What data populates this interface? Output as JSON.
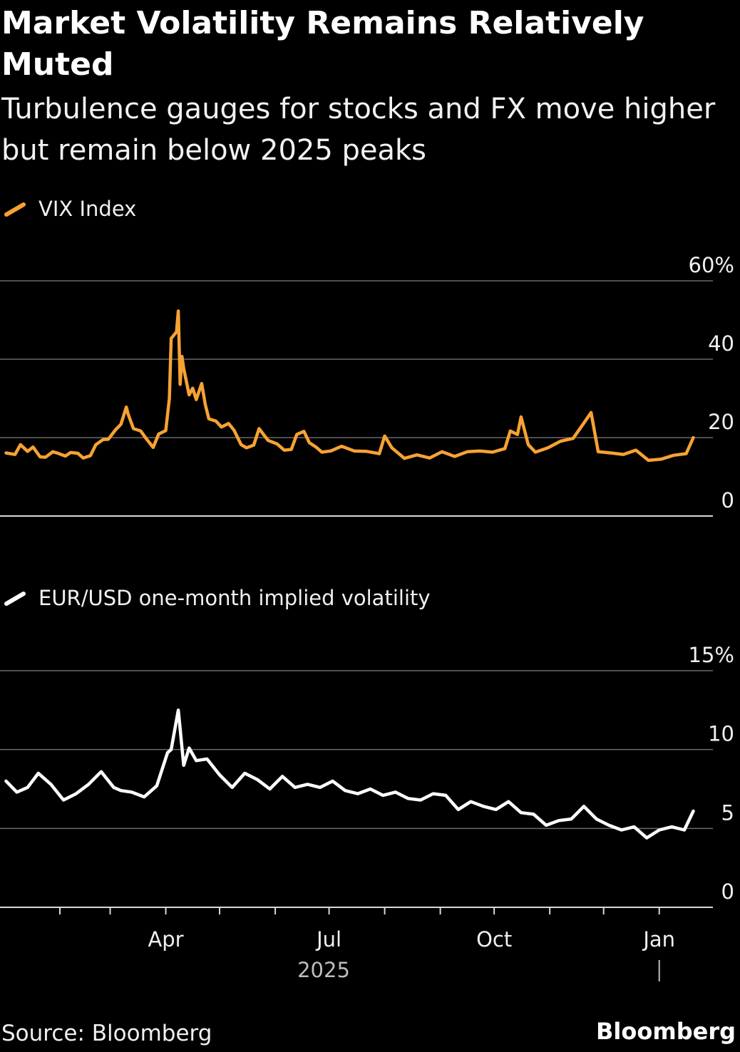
{
  "title": "Market Volatility Remains Relatively Muted",
  "subtitle": "Turbulence gauges for stocks and FX move higher but remain below 2025 peaks",
  "source": "Source: Bloomberg",
  "brand": "Bloomberg",
  "chart_data": [
    {
      "type": "line",
      "legend_placement": "top-left",
      "grid": true,
      "yticks": [
        "0",
        "20",
        "40",
        "60%"
      ],
      "ylim": [
        0,
        60
      ],
      "x_axis_shared": true,
      "color": "#f7a233",
      "series": [
        {
          "name": "VIX Index",
          "x": [
            "2025-01-02",
            "2025-01-07",
            "2025-01-10",
            "2025-01-14",
            "2025-01-17",
            "2025-01-21",
            "2025-01-24",
            "2025-01-28",
            "2025-01-31",
            "2025-02-04",
            "2025-02-07",
            "2025-02-11",
            "2025-02-14",
            "2025-02-18",
            "2025-02-21",
            "2025-02-25",
            "2025-02-28",
            "2025-03-04",
            "2025-03-07",
            "2025-03-10",
            "2025-03-11",
            "2025-03-14",
            "2025-03-18",
            "2025-03-21",
            "2025-03-25",
            "2025-03-28",
            "2025-04-01",
            "2025-04-03",
            "2025-04-04",
            "2025-04-07",
            "2025-04-08",
            "2025-04-09",
            "2025-04-10",
            "2025-04-11",
            "2025-04-14",
            "2025-04-16",
            "2025-04-18",
            "2025-04-21",
            "2025-04-23",
            "2025-04-25",
            "2025-04-29",
            "2025-05-02",
            "2025-05-06",
            "2025-05-09",
            "2025-05-13",
            "2025-05-16",
            "2025-05-20",
            "2025-05-23",
            "2025-05-28",
            "2025-06-02",
            "2025-06-06",
            "2025-06-10",
            "2025-06-13",
            "2025-06-17",
            "2025-06-20",
            "2025-06-24",
            "2025-06-27",
            "2025-07-02",
            "2025-07-08",
            "2025-07-15",
            "2025-07-22",
            "2025-07-29",
            "2025-08-01",
            "2025-08-05",
            "2025-08-12",
            "2025-08-19",
            "2025-08-26",
            "2025-09-02",
            "2025-09-09",
            "2025-09-16",
            "2025-09-23",
            "2025-09-30",
            "2025-10-07",
            "2025-10-10",
            "2025-10-14",
            "2025-10-16",
            "2025-10-20",
            "2025-10-24",
            "2025-10-31",
            "2025-11-07",
            "2025-11-14",
            "2025-11-20",
            "2025-11-24",
            "2025-11-28",
            "2025-12-05",
            "2025-12-12",
            "2025-12-19",
            "2025-12-26",
            "2026-01-02",
            "2026-01-09",
            "2026-01-16",
            "2026-01-20"
          ],
          "values": [
            16.1,
            15.7,
            18.2,
            16.5,
            17.6,
            15.1,
            15.0,
            16.4,
            16.0,
            15.3,
            16.2,
            16.0,
            14.8,
            15.4,
            18.2,
            19.5,
            19.6,
            22.0,
            23.4,
            27.8,
            26.0,
            22.3,
            21.7,
            19.8,
            17.5,
            20.9,
            21.8,
            30.0,
            45.3,
            47.0,
            52.3,
            33.6,
            40.7,
            37.6,
            30.9,
            32.6,
            29.7,
            33.8,
            28.5,
            24.8,
            24.2,
            22.7,
            23.6,
            21.9,
            18.2,
            17.4,
            18.1,
            22.3,
            19.3,
            18.4,
            16.8,
            17.0,
            20.8,
            21.6,
            18.7,
            17.5,
            16.3,
            16.6,
            17.8,
            16.6,
            16.5,
            15.9,
            20.4,
            17.4,
            14.7,
            15.6,
            14.8,
            16.4,
            15.2,
            16.4,
            16.6,
            16.3,
            17.2,
            21.7,
            20.8,
            25.3,
            18.2,
            16.3,
            17.4,
            19.1,
            19.8,
            23.7,
            26.4,
            16.4,
            16.1,
            15.7,
            16.8,
            14.2,
            14.5,
            15.5,
            15.9,
            20.0
          ]
        }
      ]
    },
    {
      "type": "line",
      "legend_placement": "top-left",
      "grid": true,
      "yticks": [
        "0",
        "5",
        "10",
        "15%"
      ],
      "ylim": [
        0,
        15
      ],
      "xticks": [
        "Apr",
        "Jul",
        "Oct",
        "Jan"
      ],
      "year_label": "2025",
      "color": "#ffffff",
      "series": [
        {
          "name": "EUR/USD one-month implied volatility",
          "x": [
            "2025-01-02",
            "2025-01-08",
            "2025-01-14",
            "2025-01-20",
            "2025-01-27",
            "2025-02-03",
            "2025-02-10",
            "2025-02-17",
            "2025-02-24",
            "2025-03-03",
            "2025-03-07",
            "2025-03-13",
            "2025-03-20",
            "2025-03-27",
            "2025-04-02",
            "2025-04-04",
            "2025-04-08",
            "2025-04-11",
            "2025-04-14",
            "2025-04-18",
            "2025-04-24",
            "2025-05-01",
            "2025-05-08",
            "2025-05-15",
            "2025-05-22",
            "2025-05-29",
            "2025-06-05",
            "2025-06-12",
            "2025-06-19",
            "2025-06-26",
            "2025-07-03",
            "2025-07-10",
            "2025-07-17",
            "2025-07-24",
            "2025-07-31",
            "2025-08-07",
            "2025-08-14",
            "2025-08-21",
            "2025-08-28",
            "2025-09-04",
            "2025-09-11",
            "2025-09-18",
            "2025-09-25",
            "2025-10-02",
            "2025-10-09",
            "2025-10-16",
            "2025-10-23",
            "2025-10-30",
            "2025-11-06",
            "2025-11-13",
            "2025-11-20",
            "2025-11-27",
            "2025-12-04",
            "2025-12-11",
            "2025-12-18",
            "2025-12-25",
            "2026-01-01",
            "2026-01-08",
            "2026-01-15",
            "2026-01-20"
          ],
          "values": [
            8.0,
            7.3,
            7.6,
            8.5,
            7.8,
            6.8,
            7.2,
            7.8,
            8.6,
            7.6,
            7.4,
            7.3,
            7.0,
            7.7,
            9.8,
            10.0,
            12.5,
            9.0,
            10.1,
            9.3,
            9.4,
            8.4,
            7.6,
            8.5,
            8.1,
            7.5,
            8.3,
            7.6,
            7.8,
            7.6,
            8.0,
            7.4,
            7.2,
            7.5,
            7.1,
            7.3,
            6.9,
            6.8,
            7.2,
            7.1,
            6.2,
            6.7,
            6.4,
            6.2,
            6.7,
            6.0,
            5.9,
            5.2,
            5.5,
            5.6,
            6.4,
            5.6,
            5.2,
            4.9,
            5.1,
            4.4,
            4.9,
            5.1,
            4.9,
            6.1
          ]
        }
      ]
    }
  ]
}
